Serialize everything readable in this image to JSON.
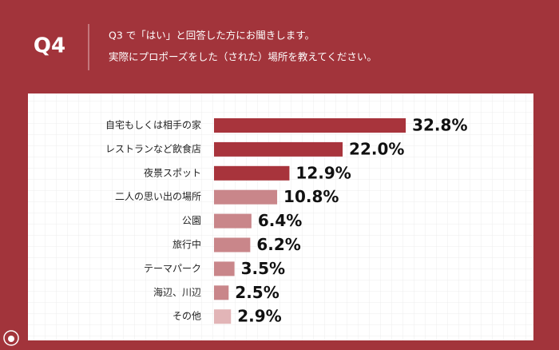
{
  "chart_data": {
    "type": "bar",
    "orientation": "horizontal",
    "title": "Q4",
    "subtitle": [
      "Q3 で「はい」と回答した方にお聞きします。",
      "実際にプロポーズをした（された）場所を教えてください。"
    ],
    "categories": [
      "自宅もしくは相手の家",
      "レストランなど飲食店",
      "夜景スポット",
      "二人の思い出の場所",
      "公園",
      "旅行中",
      "テーマパーク",
      "海辺、川辺",
      "その他"
    ],
    "values": [
      32.8,
      22.0,
      12.9,
      10.8,
      6.4,
      6.2,
      3.5,
      2.5,
      2.9
    ],
    "value_labels": [
      "32.8%",
      "22.0%",
      "12.9%",
      "10.8%",
      "6.4%",
      "6.2%",
      "3.5%",
      "2.5%",
      "2.9%"
    ],
    "colors": [
      "#a8343c",
      "#a8343c",
      "#a8343c",
      "#c9868a",
      "#c9868a",
      "#c9868a",
      "#c9868a",
      "#c9868a",
      "#e2b5b7"
    ]
  }
}
